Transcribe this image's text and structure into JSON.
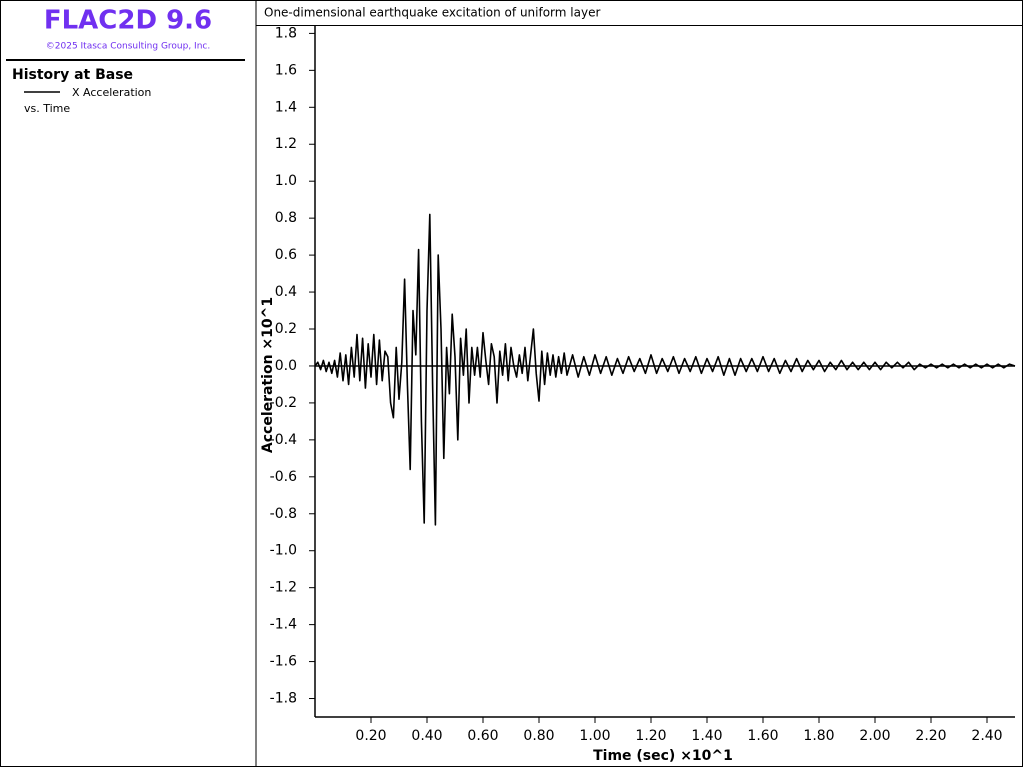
{
  "app": {
    "title": "FLAC2D 9.6",
    "copyright": "©2025 Itasca Consulting Group, Inc."
  },
  "chart_data": {
    "type": "line",
    "title": "One-dimensional earthquake excitation of uniform layer",
    "legend_title": "History at Base",
    "legend_caption": "vs. Time",
    "x_label": "Time (sec) ×10^1",
    "y_label": "Acceleration ×10^1",
    "xlim": [
      0,
      2.5
    ],
    "ylim": [
      -1.9,
      1.84
    ],
    "xticks": [
      {
        "value": 0.2,
        "label": "0.20"
      },
      {
        "value": 0.4,
        "label": "0.40"
      },
      {
        "value": 0.6,
        "label": "0.60"
      },
      {
        "value": 0.8,
        "label": "0.80"
      },
      {
        "value": 1,
        "label": "1.00"
      },
      {
        "value": 1.2,
        "label": "1.20"
      },
      {
        "value": 1.4,
        "label": "1.40"
      },
      {
        "value": 1.6,
        "label": "1.60"
      },
      {
        "value": 1.8,
        "label": "1.80"
      },
      {
        "value": 2,
        "label": "2.00"
      },
      {
        "value": 2.2,
        "label": "2.20"
      },
      {
        "value": 2.4,
        "label": "2.40"
      }
    ],
    "yticks": [
      1.8,
      1.6,
      1.4,
      1.2,
      {
        "value": 1,
        "label": "1.0"
      },
      0.8,
      0.6,
      0.4,
      0.2,
      {
        "value": 0,
        "label": "0.0"
      },
      -0.2,
      -0.4,
      -0.6,
      -0.8,
      {
        "value": -1,
        "label": "-1.0"
      },
      -1.2,
      -1.4,
      -1.6,
      -1.8
    ],
    "x": [
      0.0,
      0.01,
      0.02,
      0.03,
      0.04,
      0.05,
      0.06,
      0.07,
      0.08,
      0.09,
      0.1,
      0.11,
      0.12,
      0.13,
      0.14,
      0.15,
      0.16,
      0.17,
      0.18,
      0.19,
      0.2,
      0.21,
      0.22,
      0.23,
      0.24,
      0.25,
      0.26,
      0.27,
      0.28,
      0.29,
      0.3,
      0.31,
      0.32,
      0.33,
      0.34,
      0.35,
      0.36,
      0.37,
      0.38,
      0.39,
      0.4,
      0.41,
      0.42,
      0.43,
      0.44,
      0.45,
      0.46,
      0.47,
      0.48,
      0.49,
      0.5,
      0.51,
      0.52,
      0.53,
      0.54,
      0.55,
      0.56,
      0.57,
      0.58,
      0.59,
      0.6,
      0.61,
      0.62,
      0.63,
      0.64,
      0.65,
      0.66,
      0.67,
      0.68,
      0.69,
      0.7,
      0.71,
      0.72,
      0.73,
      0.74,
      0.75,
      0.76,
      0.77,
      0.78,
      0.79,
      0.8,
      0.81,
      0.82,
      0.83,
      0.84,
      0.85,
      0.86,
      0.87,
      0.88,
      0.89,
      0.9,
      0.92,
      0.94,
      0.96,
      0.98,
      1.0,
      1.02,
      1.04,
      1.06,
      1.08,
      1.1,
      1.12,
      1.14,
      1.16,
      1.18,
      1.2,
      1.22,
      1.24,
      1.26,
      1.28,
      1.3,
      1.32,
      1.34,
      1.36,
      1.38,
      1.4,
      1.42,
      1.44,
      1.46,
      1.48,
      1.5,
      1.52,
      1.54,
      1.56,
      1.58,
      1.6,
      1.62,
      1.64,
      1.66,
      1.68,
      1.7,
      1.72,
      1.74,
      1.76,
      1.78,
      1.8,
      1.82,
      1.84,
      1.86,
      1.88,
      1.9,
      1.92,
      1.94,
      1.96,
      1.98,
      2.0,
      2.02,
      2.04,
      2.06,
      2.08,
      2.1,
      2.12,
      2.14,
      2.16,
      2.18,
      2.2,
      2.22,
      2.24,
      2.26,
      2.28,
      2.3,
      2.32,
      2.34,
      2.36,
      2.38,
      2.4,
      2.42,
      2.44,
      2.46,
      2.48,
      2.5
    ],
    "series": [
      {
        "name": "X Acceleration",
        "color": "#000000",
        "values": [
          0.0,
          0.02,
          -0.02,
          0.03,
          -0.03,
          0.02,
          -0.04,
          0.03,
          -0.06,
          0.07,
          -0.08,
          0.06,
          -0.1,
          0.1,
          -0.06,
          0.17,
          -0.08,
          0.15,
          -0.12,
          0.12,
          -0.06,
          0.17,
          -0.1,
          0.14,
          -0.08,
          0.08,
          0.05,
          -0.2,
          -0.28,
          0.1,
          -0.18,
          0.02,
          0.47,
          -0.1,
          -0.56,
          0.3,
          0.06,
          0.63,
          -0.3,
          -0.85,
          0.3,
          0.82,
          -0.1,
          -0.86,
          0.6,
          0.2,
          -0.5,
          0.1,
          -0.15,
          0.28,
          0.05,
          -0.4,
          0.15,
          -0.05,
          0.2,
          -0.2,
          0.1,
          -0.05,
          0.1,
          -0.06,
          0.18,
          0.03,
          -0.1,
          0.12,
          0.05,
          -0.2,
          0.08,
          -0.05,
          0.12,
          -0.08,
          0.1,
          0.0,
          -0.06,
          0.06,
          -0.04,
          0.1,
          -0.08,
          0.06,
          0.2,
          -0.04,
          -0.19,
          0.08,
          -0.1,
          0.07,
          -0.05,
          0.06,
          -0.06,
          0.05,
          -0.04,
          0.07,
          -0.05,
          0.06,
          -0.06,
          0.05,
          -0.05,
          0.06,
          -0.04,
          0.05,
          -0.05,
          0.04,
          -0.04,
          0.05,
          -0.03,
          0.04,
          -0.04,
          0.06,
          -0.04,
          0.04,
          -0.03,
          0.05,
          -0.04,
          0.04,
          -0.03,
          0.05,
          -0.04,
          0.04,
          -0.03,
          0.05,
          -0.05,
          0.04,
          -0.05,
          0.04,
          -0.03,
          0.04,
          -0.03,
          0.05,
          -0.03,
          0.04,
          -0.04,
          0.03,
          -0.03,
          0.04,
          -0.03,
          0.03,
          -0.02,
          0.03,
          -0.03,
          0.02,
          -0.02,
          0.03,
          -0.02,
          0.02,
          -0.02,
          0.02,
          -0.02,
          0.02,
          -0.02,
          0.02,
          -0.01,
          0.02,
          -0.01,
          0.02,
          -0.02,
          0.01,
          -0.01,
          0.01,
          -0.01,
          0.01,
          -0.01,
          0.01,
          -0.01,
          0.01,
          -0.01,
          0.01,
          -0.01,
          0.01,
          -0.01,
          0.01,
          -0.01,
          0.01,
          0.0
        ]
      }
    ]
  }
}
